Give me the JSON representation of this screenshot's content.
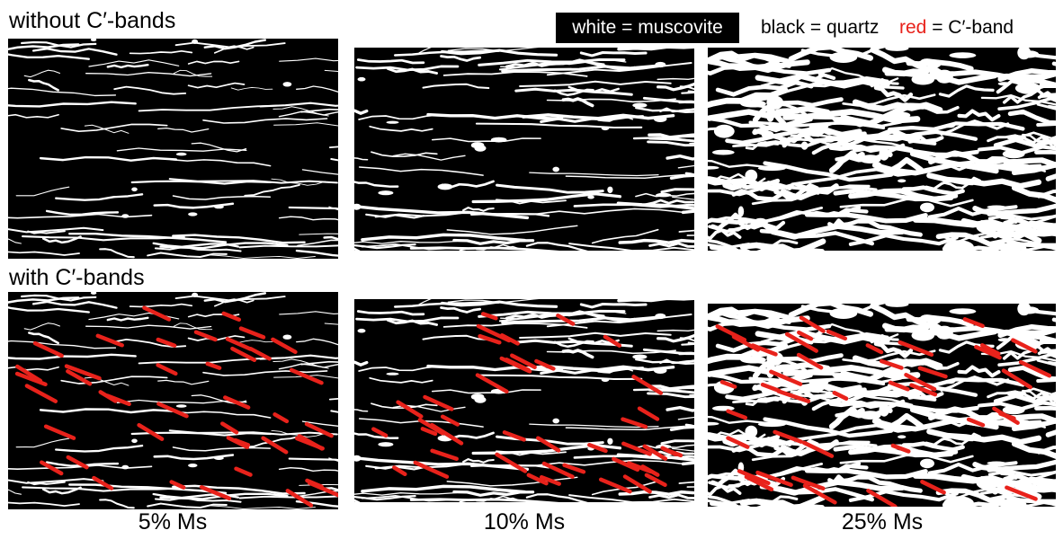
{
  "row_labels": {
    "top": "without C′-bands",
    "bottom": "with C′-bands"
  },
  "legend": {
    "white": {
      "key": "white",
      "sep": " = ",
      "value": "muscovite",
      "color": "#ffffff"
    },
    "black": {
      "key": "black",
      "sep": " = ",
      "value": "quartz",
      "color": "#000000"
    },
    "red": {
      "key": "red",
      "sep": " = ",
      "value": "C′-band",
      "color": "#e8221b"
    }
  },
  "columns": [
    {
      "label": "5% Ms",
      "muscovite_fraction": 5
    },
    {
      "label": "10% Ms",
      "muscovite_fraction": 10
    },
    {
      "label": "25% Ms",
      "muscovite_fraction": 25
    }
  ]
}
